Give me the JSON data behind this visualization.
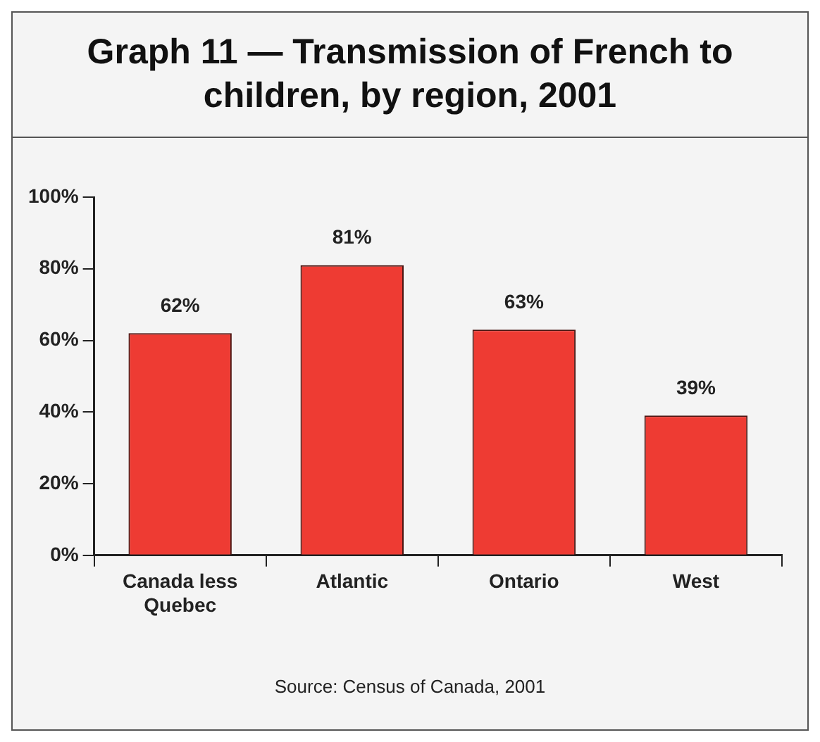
{
  "chart_data": {
    "type": "bar",
    "title": "Graph 11 — Transmission of French to children, by region, 2001",
    "categories": [
      "Canada less Quebec",
      "Atlantic",
      "Ontario",
      "West"
    ],
    "values": [
      62,
      81,
      63,
      39
    ],
    "color": "#ee3b33",
    "value_labels": [
      "62%",
      "81%",
      "63%",
      "39%"
    ],
    "ylim": [
      0,
      100
    ],
    "yticks": [
      {
        "value": 0,
        "label": "0%"
      },
      {
        "value": 20,
        "label": "20%"
      },
      {
        "value": 40,
        "label": "40%"
      },
      {
        "value": 60,
        "label": "60%"
      },
      {
        "value": 80,
        "label": "80%"
      },
      {
        "value": 100,
        "label": "100%"
      }
    ],
    "grid": false,
    "legend": false,
    "annotations": [
      "Source: Census of Canada, 2001"
    ]
  }
}
